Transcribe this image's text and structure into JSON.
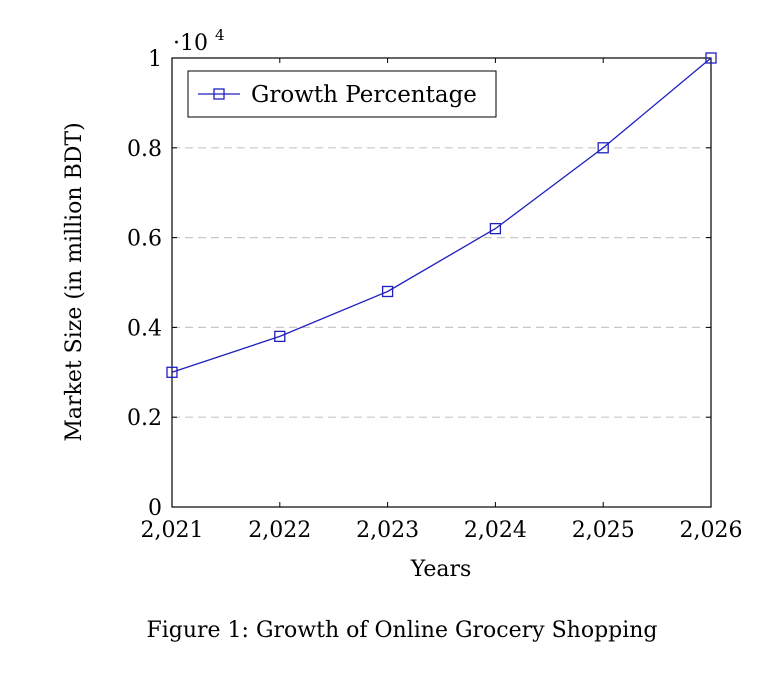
{
  "chart_data": {
    "type": "line",
    "x": [
      2021,
      2022,
      2023,
      2024,
      2025,
      2026
    ],
    "x_tick_labels": [
      "2,021",
      "2,022",
      "2,023",
      "2,024",
      "2,025",
      "2,026"
    ],
    "series": [
      {
        "name": "Growth Percentage",
        "values": [
          3000,
          3800,
          4800,
          6200,
          8000,
          10000
        ],
        "color": "#1f1fbf",
        "marker": "square"
      }
    ],
    "xlabel": "Years",
    "ylabel": "Market Size (in million BDT)",
    "ylim": [
      0,
      10000
    ],
    "xlim": [
      2021,
      2026
    ],
    "y_tick_values": [
      0,
      2000,
      4000,
      6000,
      8000,
      10000
    ],
    "y_tick_labels": [
      "0",
      "0.2",
      "0.4",
      "0.6",
      "0.8",
      "1"
    ],
    "y_multiplier_base": "·10",
    "y_multiplier_exponent": "4",
    "grid": "horizontal dashed",
    "legend_position": "top-left"
  },
  "caption": "Figure 1: Growth of Online Grocery Shopping"
}
